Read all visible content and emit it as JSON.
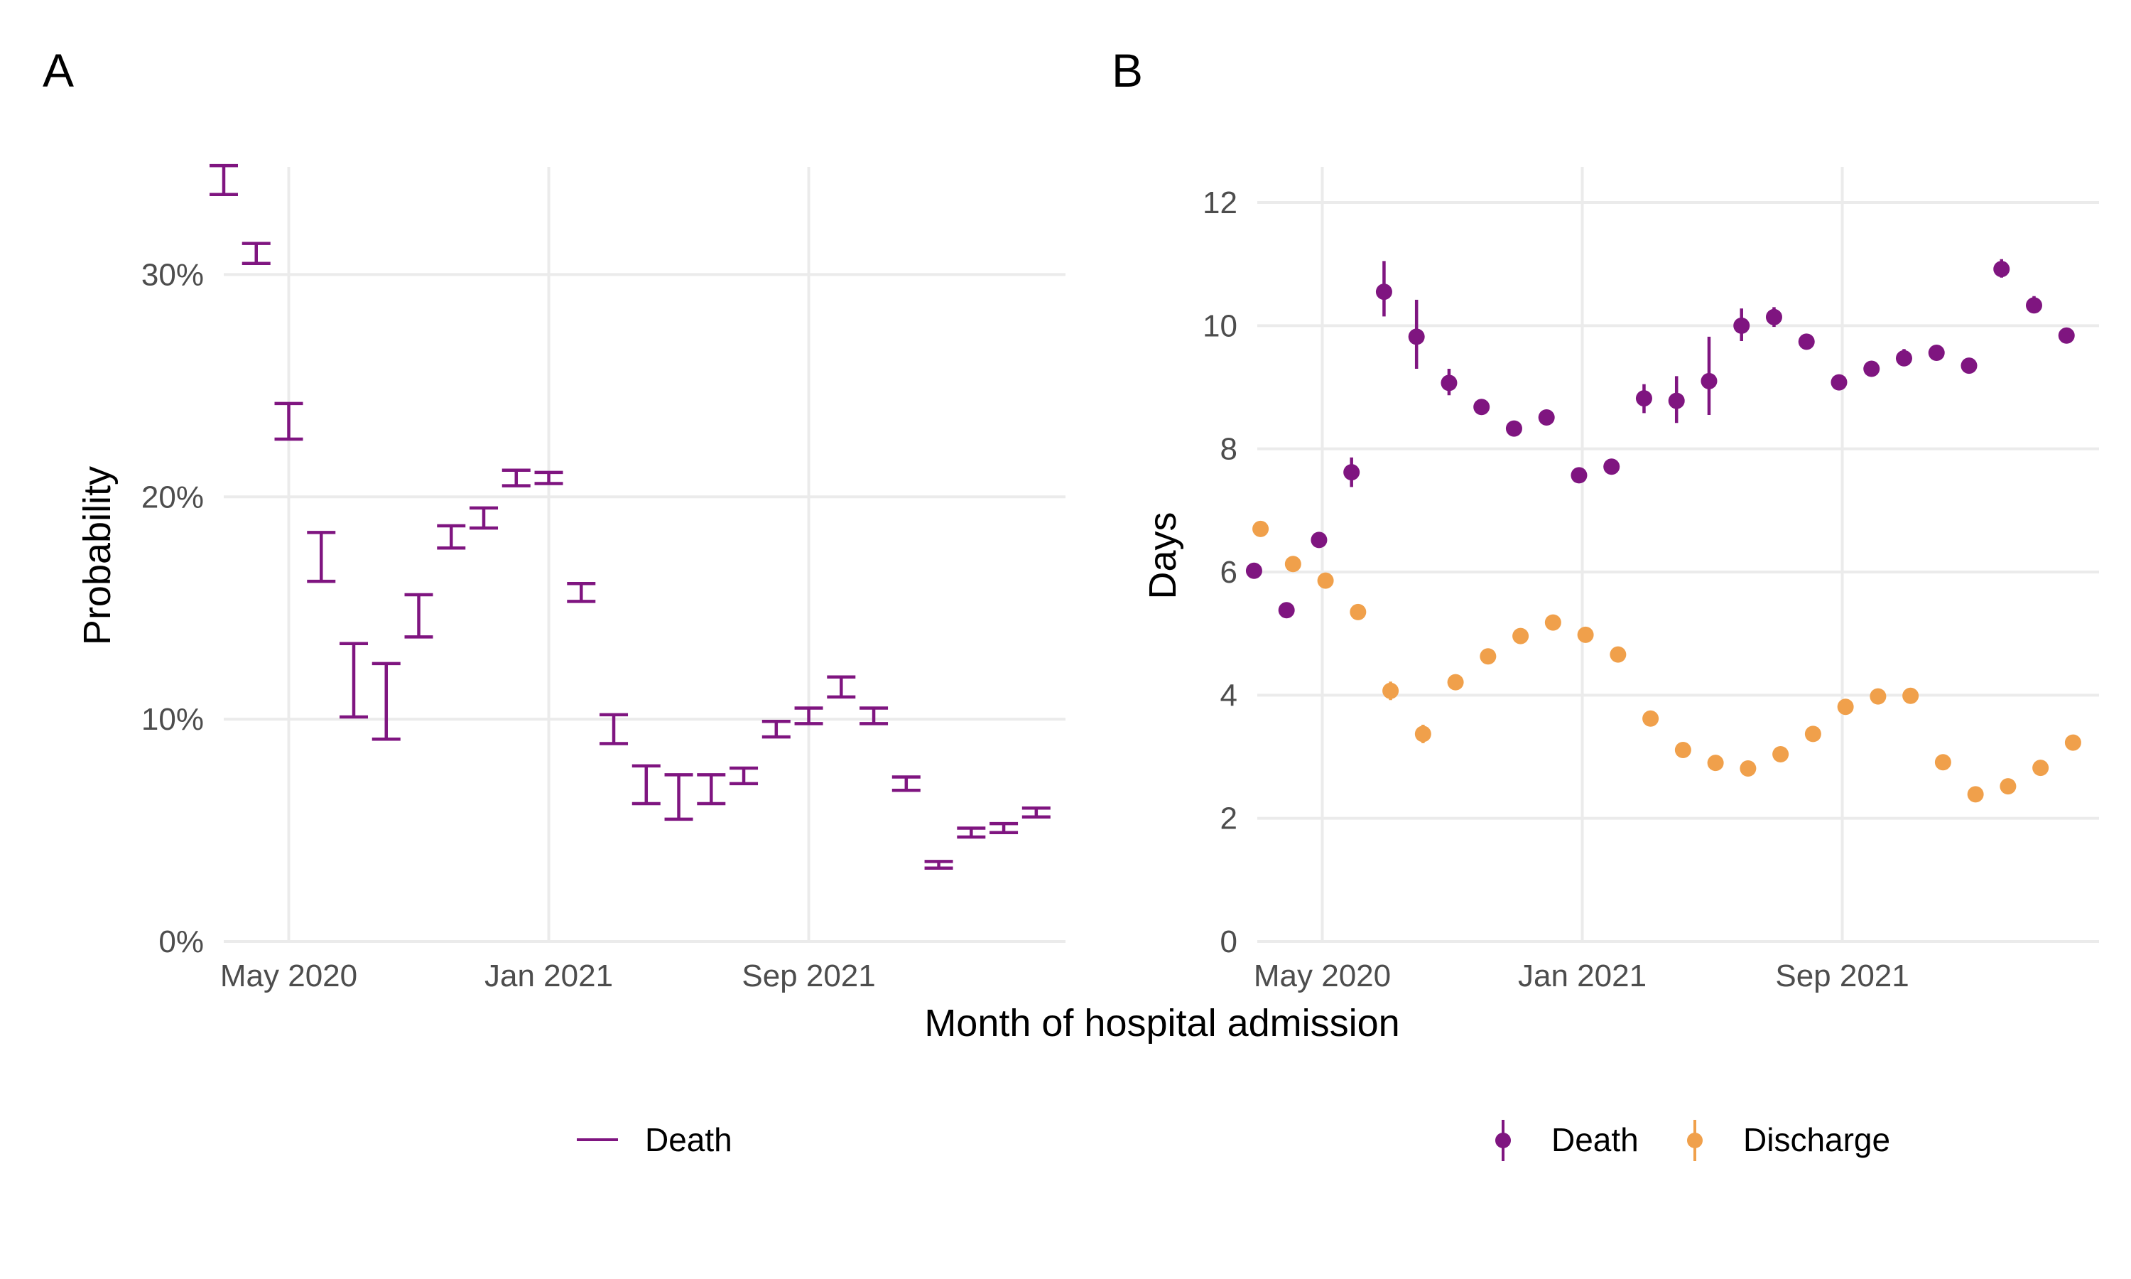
{
  "figure": {
    "shared_xlabel": "Month of hospital admission"
  },
  "colors": {
    "death": "#7F1580",
    "discharge": "#F0A04B",
    "grid": "#ebebeb"
  },
  "chart_data": [
    {
      "panel": "A",
      "type": "errorbar",
      "title": "",
      "xlabel": "",
      "ylabel": "Probability",
      "x_type": "date",
      "x_ticks": [
        "May 2020",
        "Jan 2021",
        "Sep 2021"
      ],
      "y_ticks": [
        "0%",
        "10%",
        "20%",
        "30%"
      ],
      "ylim": [
        0,
        0.35
      ],
      "grid": true,
      "legend": "bottom",
      "legend_entries": [
        "Death"
      ],
      "series": [
        {
          "name": "Death",
          "color": "#7F1580",
          "points": [
            {
              "x": "2020-03",
              "low": 0.336,
              "high": 0.349
            },
            {
              "x": "2020-04",
              "low": 0.305,
              "high": 0.314
            },
            {
              "x": "2020-05",
              "low": 0.226,
              "high": 0.242
            },
            {
              "x": "2020-06",
              "low": 0.162,
              "high": 0.184
            },
            {
              "x": "2020-07",
              "low": 0.101,
              "high": 0.134
            },
            {
              "x": "2020-08",
              "low": 0.091,
              "high": 0.125
            },
            {
              "x": "2020-09",
              "low": 0.137,
              "high": 0.156
            },
            {
              "x": "2020-10",
              "low": 0.177,
              "high": 0.187
            },
            {
              "x": "2020-11",
              "low": 0.186,
              "high": 0.195
            },
            {
              "x": "2020-12",
              "low": 0.205,
              "high": 0.212
            },
            {
              "x": "2021-01",
              "low": 0.206,
              "high": 0.211
            },
            {
              "x": "2021-02",
              "low": 0.153,
              "high": 0.161
            },
            {
              "x": "2021-03",
              "low": 0.089,
              "high": 0.102
            },
            {
              "x": "2021-04",
              "low": 0.062,
              "high": 0.079
            },
            {
              "x": "2021-05",
              "low": 0.055,
              "high": 0.075
            },
            {
              "x": "2021-06",
              "low": 0.062,
              "high": 0.075
            },
            {
              "x": "2021-07",
              "low": 0.071,
              "high": 0.078
            },
            {
              "x": "2021-08",
              "low": 0.092,
              "high": 0.099
            },
            {
              "x": "2021-09",
              "low": 0.098,
              "high": 0.105
            },
            {
              "x": "2021-10",
              "low": 0.11,
              "high": 0.119
            },
            {
              "x": "2021-11",
              "low": 0.098,
              "high": 0.105
            },
            {
              "x": "2021-12",
              "low": 0.068,
              "high": 0.074
            },
            {
              "x": "2022-01",
              "low": 0.033,
              "high": 0.036
            },
            {
              "x": "2022-02",
              "low": 0.047,
              "high": 0.051
            },
            {
              "x": "2022-03",
              "low": 0.049,
              "high": 0.053
            },
            {
              "x": "2022-04",
              "low": 0.056,
              "high": 0.06
            }
          ]
        }
      ]
    },
    {
      "panel": "B",
      "type": "pointrange",
      "title": "",
      "xlabel": "",
      "ylabel": "Days",
      "x_type": "date",
      "x_ticks": [
        "May 2020",
        "Jan 2021",
        "Sep 2021"
      ],
      "y_ticks": [
        "0",
        "2",
        "4",
        "6",
        "8",
        "10",
        "12"
      ],
      "ylim": [
        0,
        12
      ],
      "grid": true,
      "legend": "bottom",
      "legend_entries": [
        "Death",
        "Discharge"
      ],
      "series": [
        {
          "name": "Death",
          "color": "#7F1580",
          "points": [
            {
              "x": "2020-03",
              "y": 6.02,
              "low": 5.95,
              "high": 6.09
            },
            {
              "x": "2020-04",
              "y": 5.38,
              "low": 5.32,
              "high": 5.44
            },
            {
              "x": "2020-05",
              "y": 6.52,
              "low": 6.42,
              "high": 6.62
            },
            {
              "x": "2020-06",
              "y": 7.62,
              "low": 7.38,
              "high": 7.86
            },
            {
              "x": "2020-07",
              "y": 10.55,
              "low": 10.15,
              "high": 11.05
            },
            {
              "x": "2020-08",
              "y": 9.82,
              "low": 9.3,
              "high": 10.42
            },
            {
              "x": "2020-09",
              "y": 9.07,
              "low": 8.87,
              "high": 9.3
            },
            {
              "x": "2020-10",
              "y": 8.68,
              "low": 8.6,
              "high": 8.76
            },
            {
              "x": "2020-11",
              "y": 8.33,
              "low": 8.28,
              "high": 8.38
            },
            {
              "x": "2020-12",
              "y": 8.51,
              "low": 8.46,
              "high": 8.56
            },
            {
              "x": "2021-01",
              "y": 7.57,
              "low": 7.53,
              "high": 7.61
            },
            {
              "x": "2021-02",
              "y": 7.71,
              "low": 7.64,
              "high": 7.78
            },
            {
              "x": "2021-03",
              "y": 8.82,
              "low": 8.58,
              "high": 9.05
            },
            {
              "x": "2021-04",
              "y": 8.78,
              "low": 8.42,
              "high": 9.18
            },
            {
              "x": "2021-05",
              "y": 9.1,
              "low": 8.55,
              "high": 9.82
            },
            {
              "x": "2021-06",
              "y": 10.0,
              "low": 9.75,
              "high": 10.28
            },
            {
              "x": "2021-07",
              "y": 10.14,
              "low": 9.98,
              "high": 10.3
            },
            {
              "x": "2021-08",
              "y": 9.74,
              "low": 9.63,
              "high": 9.85
            },
            {
              "x": "2021-09",
              "y": 9.08,
              "low": 9.0,
              "high": 9.16
            },
            {
              "x": "2021-10",
              "y": 9.3,
              "low": 9.18,
              "high": 9.42
            },
            {
              "x": "2021-11",
              "y": 9.47,
              "low": 9.34,
              "high": 9.62
            },
            {
              "x": "2021-12",
              "y": 9.56,
              "low": 9.44,
              "high": 9.68
            },
            {
              "x": "2022-01",
              "y": 9.35,
              "low": 9.24,
              "high": 9.46
            },
            {
              "x": "2022-02",
              "y": 10.92,
              "low": 10.78,
              "high": 11.08
            },
            {
              "x": "2022-03",
              "y": 10.33,
              "low": 10.2,
              "high": 10.48
            },
            {
              "x": "2022-04",
              "y": 9.84,
              "low": 9.73,
              "high": 9.96
            }
          ]
        },
        {
          "name": "Discharge",
          "color": "#F0A04B",
          "points": [
            {
              "x": "2020-03",
              "y": 6.7,
              "low": 6.66,
              "high": 6.74
            },
            {
              "x": "2020-04",
              "y": 6.13,
              "low": 6.09,
              "high": 6.17
            },
            {
              "x": "2020-05",
              "y": 5.86,
              "low": 5.82,
              "high": 5.9
            },
            {
              "x": "2020-06",
              "y": 5.35,
              "low": 5.31,
              "high": 5.39
            },
            {
              "x": "2020-07",
              "y": 4.07,
              "low": 3.92,
              "high": 4.22
            },
            {
              "x": "2020-08",
              "y": 3.37,
              "low": 3.22,
              "high": 3.52
            },
            {
              "x": "2020-09",
              "y": 4.21,
              "low": 4.17,
              "high": 4.25
            },
            {
              "x": "2020-10",
              "y": 4.63,
              "low": 4.59,
              "high": 4.67
            },
            {
              "x": "2020-11",
              "y": 4.96,
              "low": 4.93,
              "high": 4.99
            },
            {
              "x": "2020-12",
              "y": 5.18,
              "low": 5.15,
              "high": 5.21
            },
            {
              "x": "2021-01",
              "y": 4.98,
              "low": 4.95,
              "high": 5.01
            },
            {
              "x": "2021-02",
              "y": 4.66,
              "low": 4.63,
              "high": 4.69
            },
            {
              "x": "2021-03",
              "y": 3.62,
              "low": 3.58,
              "high": 3.66
            },
            {
              "x": "2021-04",
              "y": 3.11,
              "low": 3.07,
              "high": 3.15
            },
            {
              "x": "2021-05",
              "y": 2.9,
              "low": 2.86,
              "high": 2.94
            },
            {
              "x": "2021-06",
              "y": 2.81,
              "low": 2.77,
              "high": 2.85
            },
            {
              "x": "2021-07",
              "y": 3.04,
              "low": 3.0,
              "high": 3.08
            },
            {
              "x": "2021-08",
              "y": 3.37,
              "low": 3.33,
              "high": 3.41
            },
            {
              "x": "2021-09",
              "y": 3.81,
              "low": 3.77,
              "high": 3.85
            },
            {
              "x": "2021-10",
              "y": 3.98,
              "low": 3.94,
              "high": 4.02
            },
            {
              "x": "2021-11",
              "y": 3.99,
              "low": 3.95,
              "high": 4.03
            },
            {
              "x": "2021-12",
              "y": 2.91,
              "low": 2.87,
              "high": 2.95
            },
            {
              "x": "2022-01",
              "y": 2.39,
              "low": 2.35,
              "high": 2.43
            },
            {
              "x": "2022-02",
              "y": 2.52,
              "low": 2.48,
              "high": 2.56
            },
            {
              "x": "2022-03",
              "y": 2.82,
              "low": 2.78,
              "high": 2.86
            },
            {
              "x": "2022-04",
              "y": 3.23,
              "low": 3.19,
              "high": 3.27
            }
          ]
        }
      ]
    }
  ]
}
